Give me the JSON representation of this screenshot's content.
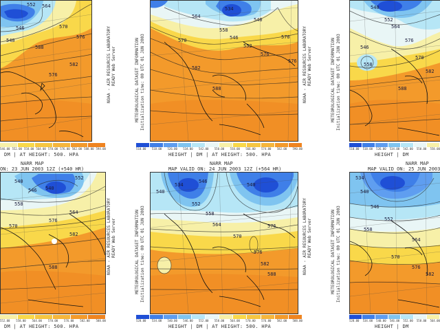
{
  "colors": {
    "deep_blue": "#1f4fd6",
    "mid_blue": "#3f7fe8",
    "light_blue": "#7fc4f0",
    "cyan": "#b6e6f6",
    "pale": "#e9f6f6",
    "pale_yellow": "#f7f0a8",
    "yellow": "#f9d84a",
    "gold": "#f6b63c",
    "orange": "#f39a2b",
    "deep_orange": "#ef8420"
  },
  "legend_colors": [
    "#1f4fd6",
    "#3f7fe8",
    "#5f9ef0",
    "#7fc4f0",
    "#b6e6f6",
    "#e9f6f6",
    "#f7f0a8",
    "#f9d84a",
    "#f6c642",
    "#f6b63c",
    "#f39a2b",
    "#ef8420"
  ],
  "panels": [
    {
      "id": "top-left",
      "legend_ticks": [
        "546.00",
        "552.00",
        "558.00",
        "564.00",
        "570.00",
        "576.00",
        "582.00",
        "588.00",
        "594.00"
      ],
      "caption": "DM  | AT HEIGHT: 500. HPA",
      "side_text": [],
      "contour_labels": [
        "552",
        "564",
        "570",
        "576",
        "588",
        "540",
        "546",
        "576",
        "582"
      ]
    },
    {
      "id": "top-middle",
      "legend_ticks": [
        "510.00",
        "518.00",
        "526.00",
        "534.00",
        "542.00",
        "550.00",
        "558.00",
        "566.00",
        "574.00",
        "582.00",
        "590.00"
      ],
      "caption": "HEIGHT | DM  | AT HEIGHT: 500. HPA",
      "side_text": [
        "NOAA - AIR RESOURCES LABORATORY",
        "READY Web Server",
        "METEOROLOGICAL DATASET INFORMATION",
        "Initialization time: 00 UTC 01 JUN 2003"
      ],
      "contour_labels": [
        "564",
        "558",
        "546",
        "552",
        "534",
        "576",
        "582",
        "588",
        "570",
        "540",
        "570",
        "576"
      ]
    },
    {
      "id": "top-right",
      "legend_ticks": [
        "510.00",
        "518.00",
        "526.00",
        "534.00",
        "542.00",
        "550.00",
        "558.00"
      ],
      "caption": "HEIGHT | DM",
      "side_text": [
        "NOAA - AIR RESOURCES LABORATORY",
        "READY Web Server",
        "METEOROLOGICAL DATASET INFORMATION",
        "Initialization time: 00 UTC 01 JUN 2003"
      ],
      "contour_labels": [
        "540",
        "546",
        "564",
        "576",
        "570",
        "582",
        "588",
        "552",
        "558"
      ]
    },
    {
      "id": "bottom-left",
      "title_lines": [
        "NARR MAP",
        "ON: 23 JUN 2003 12Z (+540 HR)"
      ],
      "legend_ticks": [
        "552.00",
        "558.00",
        "564.00",
        "570.00",
        "576.00",
        "582.00",
        "588.00"
      ],
      "caption": "DM  | AT HEIGHT: 500. HPA",
      "side_text": [],
      "contour_labels": [
        "540",
        "546",
        "552",
        "558",
        "564",
        "570",
        "576",
        "582",
        "588",
        "540"
      ]
    },
    {
      "id": "bottom-middle",
      "title_lines": [
        "NARR MAP",
        "MAP VALID ON: 24 JUN 2003 12Z (+564 HR)"
      ],
      "legend_ticks": [
        "528.00",
        "534.00",
        "540.00",
        "546.00",
        "552.00",
        "558.00",
        "564.00",
        "570.00",
        "576.00",
        "582.00",
        "588.00"
      ],
      "caption": "HEIGHT | DM  | AT HEIGHT: 500. HPA",
      "side_text": [
        "NOAA - AIR RESOURCES LABORATORY",
        "READY Web Server",
        "METEOROLOGICAL DATASET INFORMATION",
        "Initialization time: 00 UTC 01 JUN 2003"
      ],
      "contour_labels": [
        "540",
        "546",
        "552",
        "558",
        "564",
        "570",
        "576",
        "582",
        "588",
        "534",
        "540",
        "576"
      ]
    },
    {
      "id": "bottom-right",
      "title_lines": [
        "NARR MAP",
        "MAP VALID ON: 25 JUN 2003 12"
      ],
      "legend_ticks": [
        "528.00",
        "534.00",
        "540.00",
        "546.00",
        "552.00",
        "558.00",
        "564.00"
      ],
      "caption": "HEIGHT | DM",
      "side_text": [
        "NOAA - AIR RESOURCES LABORATORY",
        "READY Web Server",
        "METEOROLOGICAL DATASET INFORMATION",
        "Initialization time: 00 UTC 01 JUN 2003"
      ],
      "contour_labels": [
        "534",
        "540",
        "546",
        "552",
        "558",
        "564",
        "570",
        "576",
        "582"
      ]
    }
  ]
}
